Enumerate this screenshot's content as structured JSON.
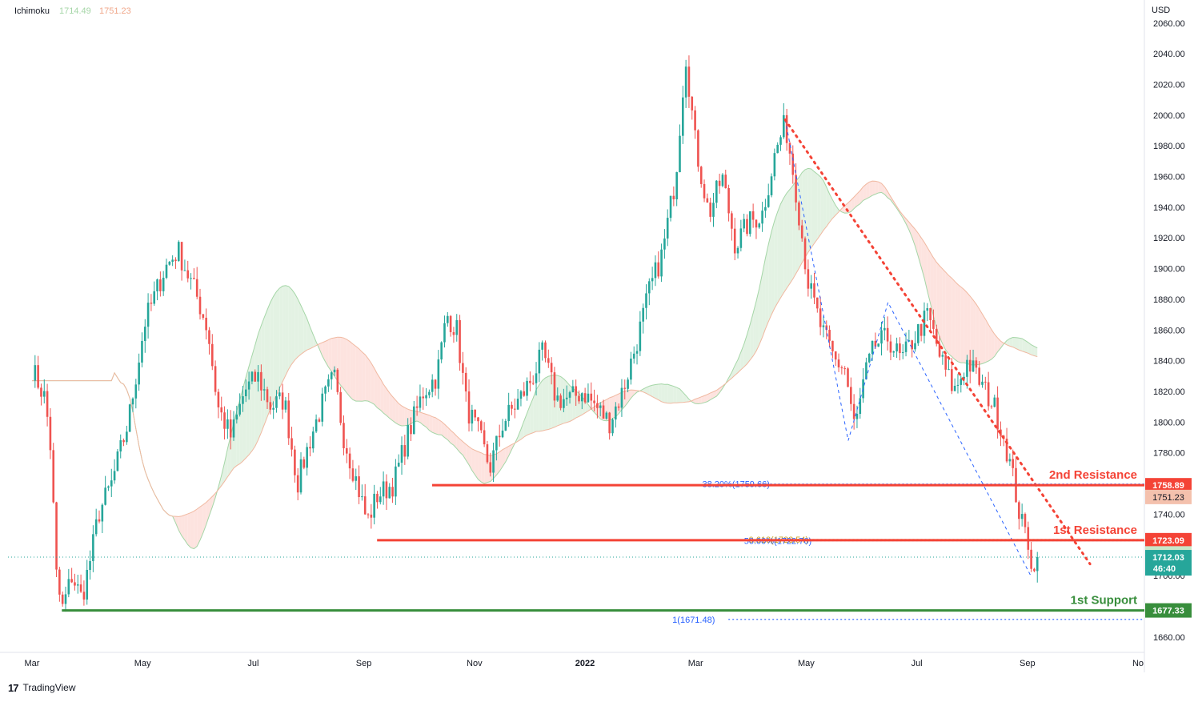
{
  "indicator": {
    "name": "Ichimoku",
    "values": [
      {
        "text": "1714.49",
        "color": "#a5d6a7"
      },
      {
        "text": "1751.23",
        "color": "#f0a78a"
      }
    ]
  },
  "currency_label": "USD",
  "footer": {
    "logo": "17",
    "brand": "TradingView"
  },
  "colors": {
    "up": "#26a69a",
    "down": "#ef5350",
    "cloud_bull": "#e3f2e3",
    "cloud_bear": "#fde3df",
    "span_a": "#a5d6a7",
    "span_b": "#f0b8a0",
    "resistance": "#f44336",
    "support": "#388e3c",
    "fib": "#2962ff",
    "fib_gold": "#c9a227"
  },
  "chart_data": {
    "type": "candlestick",
    "ylim": [
      1650,
      2075
    ],
    "y_ticks": [
      "2060.00",
      "2040.00",
      "2020.00",
      "2000.00",
      "1980.00",
      "1960.00",
      "1940.00",
      "1920.00",
      "1900.00",
      "1880.00",
      "1860.00",
      "1840.00",
      "1820.00",
      "1800.00",
      "1780.00",
      "1760.00",
      "1740.00",
      "1720.00",
      "1700.00",
      "1680.00",
      "1660.00"
    ],
    "x_ticks": [
      {
        "label": "Mar",
        "bold": false
      },
      {
        "label": "May",
        "bold": false
      },
      {
        "label": "Jul",
        "bold": false
      },
      {
        "label": "Sep",
        "bold": false
      },
      {
        "label": "Nov",
        "bold": false
      },
      {
        "label": "2022",
        "bold": true
      },
      {
        "label": "Mar",
        "bold": false
      },
      {
        "label": "May",
        "bold": false
      },
      {
        "label": "Jul",
        "bold": false
      },
      {
        "label": "Sep",
        "bold": false
      },
      {
        "label": "No",
        "bold": false
      }
    ],
    "price_path": [
      [
        0,
        1835
      ],
      [
        0.02,
        1815
      ],
      [
        0.03,
        1775
      ],
      [
        0.035,
        1705
      ],
      [
        0.045,
        1677
      ],
      [
        0.06,
        1700
      ],
      [
        0.075,
        1685
      ],
      [
        0.09,
        1715
      ],
      [
        0.1,
        1740
      ],
      [
        0.12,
        1760
      ],
      [
        0.145,
        1800
      ],
      [
        0.17,
        1865
      ],
      [
        0.2,
        1900
      ],
      [
        0.22,
        1912
      ],
      [
        0.25,
        1880
      ],
      [
        0.265,
        1860
      ],
      [
        0.28,
        1810
      ],
      [
        0.3,
        1790
      ],
      [
        0.32,
        1820
      ],
      [
        0.34,
        1830
      ],
      [
        0.36,
        1810
      ],
      [
        0.38,
        1815
      ],
      [
        0.4,
        1760
      ],
      [
        0.42,
        1790
      ],
      [
        0.44,
        1815
      ],
      [
        0.455,
        1830
      ],
      [
        0.47,
        1790
      ],
      [
        0.49,
        1760
      ],
      [
        0.505,
        1735
      ],
      [
        0.52,
        1752
      ],
      [
        0.545,
        1760
      ],
      [
        0.565,
        1790
      ],
      [
        0.59,
        1820
      ],
      [
        0.61,
        1830
      ],
      [
        0.625,
        1870
      ],
      [
        0.64,
        1860
      ],
      [
        0.655,
        1810
      ],
      [
        0.675,
        1790
      ],
      [
        0.69,
        1770
      ],
      [
        0.71,
        1800
      ],
      [
        0.735,
        1815
      ],
      [
        0.755,
        1830
      ],
      [
        0.77,
        1845
      ],
      [
        0.79,
        1815
      ],
      [
        0.81,
        1815
      ],
      [
        0.83,
        1820
      ],
      [
        0.85,
        1810
      ],
      [
        0.87,
        1800
      ],
      [
        0.89,
        1820
      ],
      [
        0.91,
        1850
      ],
      [
        0.93,
        1885
      ],
      [
        0.95,
        1910
      ],
      [
        0.97,
        1960
      ],
      [
        0.985,
        2040
      ],
      [
        1.0,
        1980
      ],
      [
        1.02,
        1935
      ],
      [
        1.04,
        1960
      ],
      [
        1.06,
        1915
      ],
      [
        1.08,
        1930
      ],
      [
        1.1,
        1935
      ],
      [
        1.12,
        1975
      ],
      [
        1.135,
        1995
      ],
      [
        1.15,
        1955
      ],
      [
        1.17,
        1890
      ],
      [
        1.19,
        1860
      ],
      [
        1.21,
        1840
      ],
      [
        1.225,
        1835
      ],
      [
        1.24,
        1795
      ],
      [
        1.255,
        1830
      ],
      [
        1.27,
        1850
      ],
      [
        1.29,
        1855
      ],
      [
        1.31,
        1840
      ],
      [
        1.33,
        1855
      ],
      [
        1.35,
        1870
      ],
      [
        1.37,
        1840
      ],
      [
        1.39,
        1820
      ],
      [
        1.41,
        1840
      ],
      [
        1.43,
        1825
      ],
      [
        1.45,
        1810
      ],
      [
        1.465,
        1790
      ],
      [
        1.48,
        1760
      ],
      [
        1.49,
        1735
      ],
      [
        1.5,
        1725
      ],
      [
        1.51,
        1700
      ],
      [
        1.515,
        1712
      ]
    ],
    "last_price": 1712.03,
    "countdown": "46:40",
    "levels": [
      {
        "name": "2nd Resistance",
        "price": 1758.89,
        "label": "1758.89",
        "start_x": 0.603,
        "style": "solid"
      },
      {
        "name": "1st Resistance",
        "price": 1723.09,
        "label": "1723.09",
        "start_x": 0.52,
        "style": "solid"
      },
      {
        "name": "1st Support",
        "price": 1677.33,
        "label": "1677.33",
        "start_x": 0.045,
        "style": "solid"
      }
    ],
    "ichimoku_labels": [
      {
        "price": 1751.23,
        "label": "1751.23"
      },
      {
        "price": 1714.49,
        "label": "1714.49"
      }
    ],
    "fib": {
      "levels": [
        {
          "label": "38.20%(1759.66)",
          "price": 1759.66,
          "x": 1.01,
          "color": "#2962ff"
        },
        {
          "label": "0.618(1723.54)",
          "price": 1723.54,
          "x": 1.08,
          "color": "#c9a227"
        },
        {
          "label": "50.00%(1722.76)",
          "price": 1722.76,
          "x": 1.073,
          "color": "#2962ff"
        },
        {
          "label": "1(1671.48)",
          "price": 1671.48,
          "x": 0.965,
          "color": "#2962ff"
        }
      ],
      "zigzag": [
        [
          1.135,
          1997
        ],
        [
          1.23,
          1788
        ],
        [
          1.29,
          1878
        ],
        [
          1.505,
          1700
        ]
      ]
    },
    "trendline": [
      [
        1.135,
        1997
      ],
      [
        1.51,
        1706
      ]
    ]
  }
}
